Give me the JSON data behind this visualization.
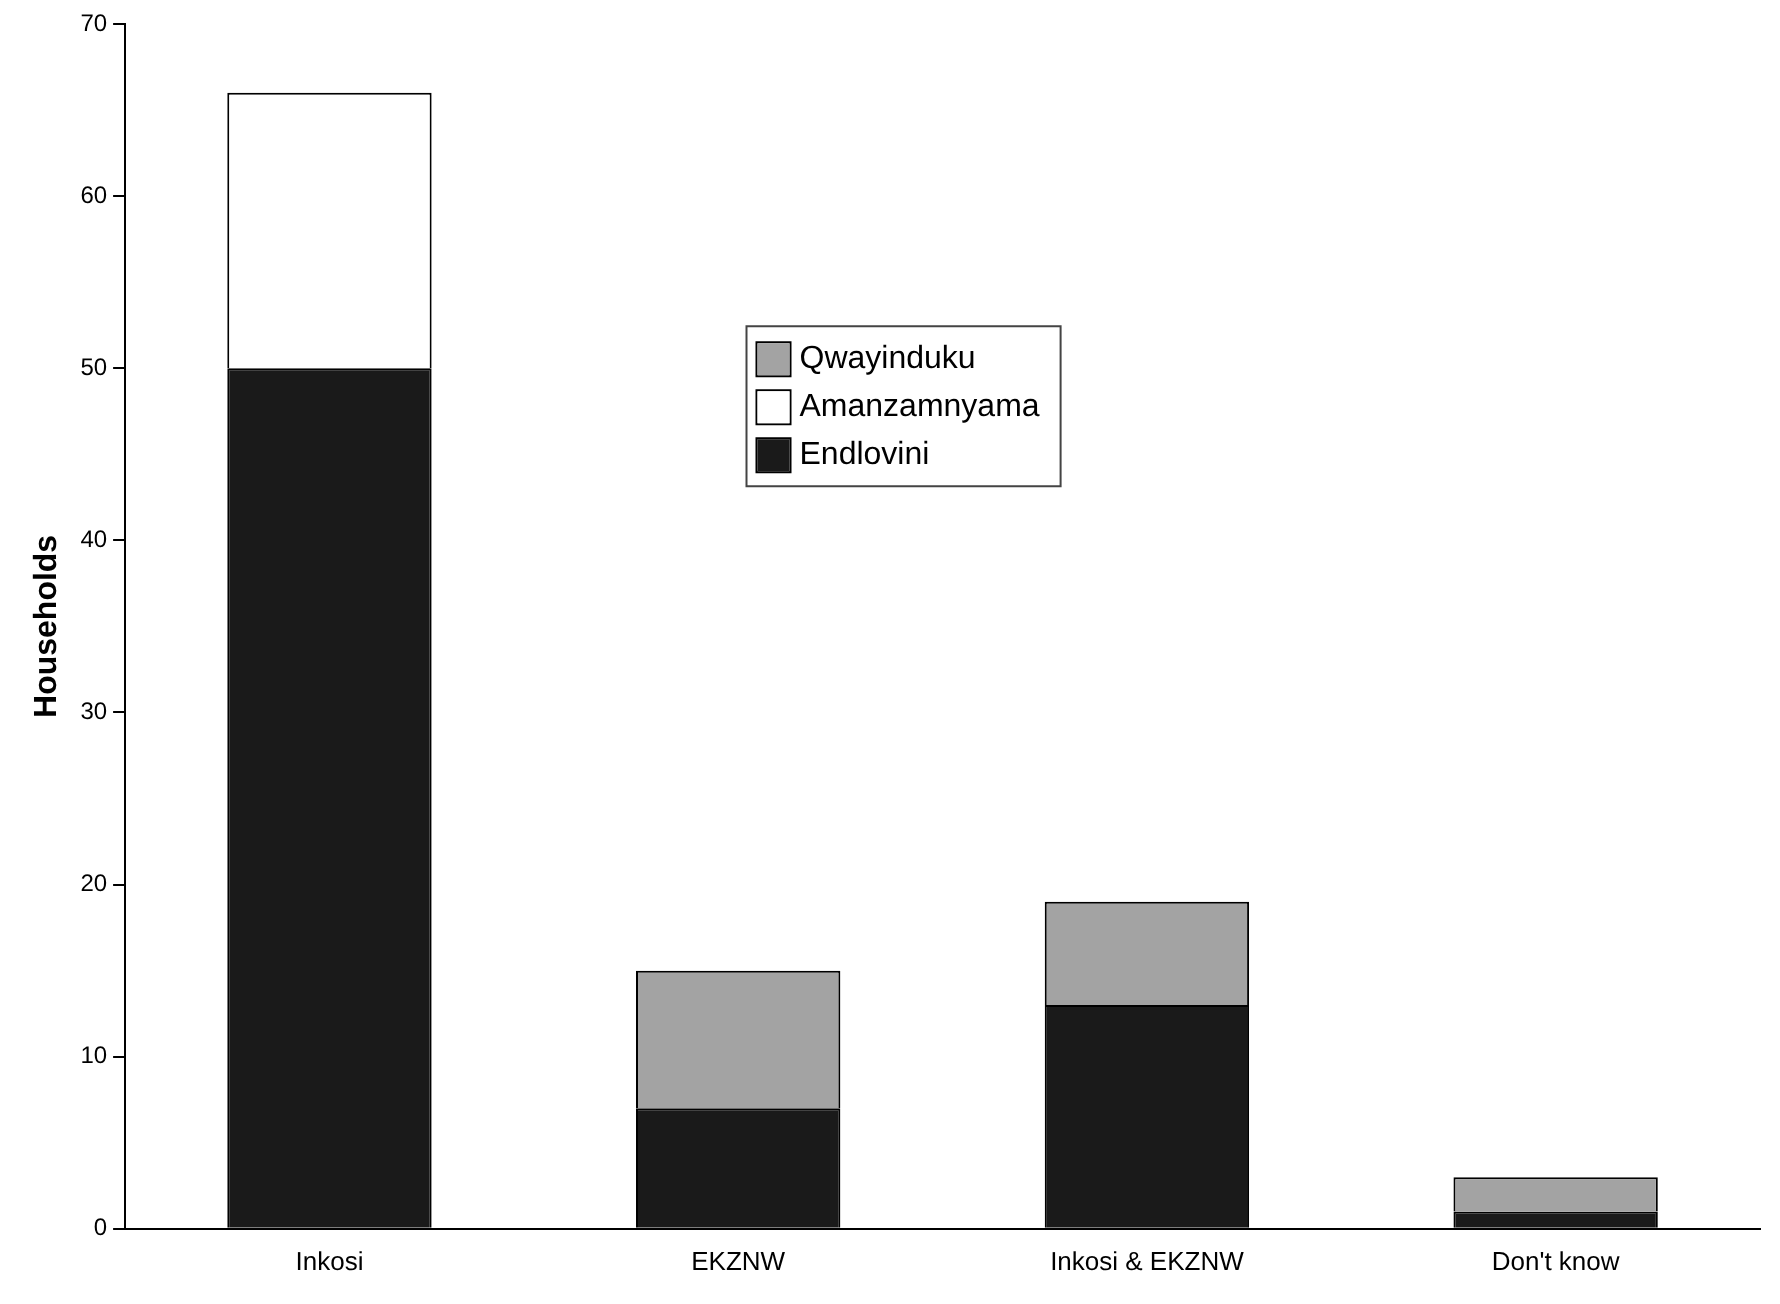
{
  "chart_data": {
    "type": "bar",
    "ylabel": "Households",
    "categories": [
      "Inkosi",
      "EKZNW",
      "Inkosi & EKZNW",
      "Don't know"
    ],
    "stacked": true,
    "ylim": [
      0,
      70
    ],
    "yticks": [
      0,
      10,
      20,
      30,
      40,
      50,
      60,
      70
    ],
    "grid": false,
    "legend": "top",
    "series": [
      {
        "name": "Endlovini",
        "color": "#1a1a1a",
        "values": [
          50,
          7,
          13,
          1
        ]
      },
      {
        "name": "Amanzamnyama",
        "color": "#ffffff",
        "values": [
          16,
          0,
          0,
          0
        ]
      },
      {
        "name": "Qwayinduku",
        "color": "#a3a3a3",
        "values": [
          0,
          8,
          6,
          2
        ]
      }
    ]
  }
}
